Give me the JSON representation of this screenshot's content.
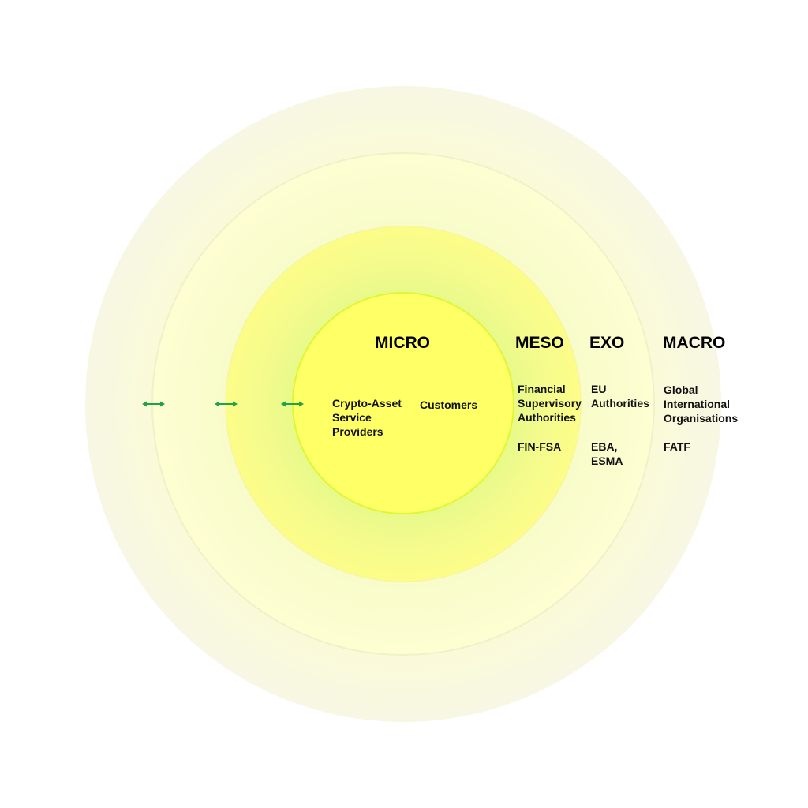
{
  "colors": {
    "inner": "#ffff66",
    "inner_stroke": "#ddf733",
    "arrow": "#22a04a",
    "meso": "#fcfc88",
    "exo": "#fdfdcc",
    "macro": "#f8f8e2"
  },
  "levels": [
    {
      "title": "MICRO",
      "items": [
        "Crypto-Asset\nService\nProviders",
        "Customers"
      ]
    },
    {
      "title": "MESO",
      "items": [
        "Financial\nSupervisory\nAuthorities",
        "FIN-FSA"
      ]
    },
    {
      "title": "EXO",
      "items": [
        "EU\nAuthorities",
        "EBA,\nESMA"
      ]
    },
    {
      "title": "MACRO",
      "items": [
        "Global\nInternational\nOrganisations",
        "FATF"
      ]
    }
  ],
  "icons": {
    "arrow": "double-headed-arrow"
  }
}
